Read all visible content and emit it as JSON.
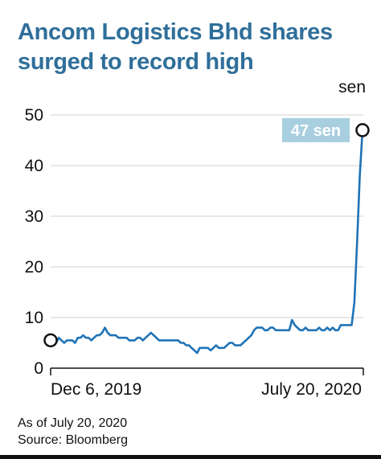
{
  "title": "Ancom Logistics Bhd shares surged to record high",
  "footer": {
    "as_of": "As of July 20, 2020",
    "source": "Source: Bloomberg"
  },
  "colors": {
    "title": "#2f6f9a",
    "line": "#1f73b7",
    "callout_bg": "#a8cfe0",
    "grid": "#d0d0d0"
  },
  "chart_data": {
    "type": "line",
    "ylabel": "sen",
    "ylim": [
      0,
      50
    ],
    "yticks": [
      0,
      10,
      20,
      30,
      40,
      50
    ],
    "grid": true,
    "xtick_labels": [
      "Dec 6, 2019",
      "July 20, 2020"
    ],
    "callout": "47 sen",
    "first_point": {
      "x": 0,
      "y": 5.5
    },
    "last_point": {
      "x": 100,
      "y": 47
    },
    "series": [
      {
        "values": [
          5.5,
          5.5,
          5.0,
          6.0,
          5.5,
          5.0,
          5.5,
          5.5,
          5.5,
          5.0,
          6.0,
          6.0,
          6.5,
          6.0,
          6.0,
          5.5,
          6.0,
          6.5,
          6.5,
          7.0,
          8.0,
          7.0,
          6.5,
          6.5,
          6.5,
          6.0,
          6.0,
          6.0,
          6.0,
          5.5,
          5.5,
          5.5,
          6.0,
          6.0,
          5.5,
          6.0,
          6.5,
          7.0,
          6.5,
          6.0,
          5.5,
          5.5,
          5.5,
          5.5,
          5.5,
          5.5,
          5.5,
          5.5,
          5.0,
          5.0,
          4.5,
          4.5,
          4.0,
          3.5,
          3.0,
          4.0,
          4.0,
          4.0,
          4.0,
          3.5,
          4.0,
          4.5,
          4.0,
          4.0,
          4.0,
          4.5,
          5.0,
          5.0,
          4.5,
          4.5,
          4.5,
          5.0,
          5.5,
          6.0,
          6.5,
          7.5,
          8.0,
          8.0,
          8.0,
          7.5,
          7.5,
          8.0,
          8.0,
          7.5,
          7.5,
          7.5,
          7.5,
          7.5,
          7.5,
          9.5,
          8.5,
          8.0,
          7.5,
          7.5,
          8.0,
          7.5,
          7.5,
          7.5,
          7.5,
          8.0,
          7.5,
          7.5,
          8.0,
          7.5,
          8.0,
          7.5,
          7.5,
          8.5,
          8.5,
          8.5,
          8.5,
          8.5,
          13.0,
          25.0,
          38.0,
          47.0
        ],
        "color": "#1f73b7"
      }
    ]
  }
}
